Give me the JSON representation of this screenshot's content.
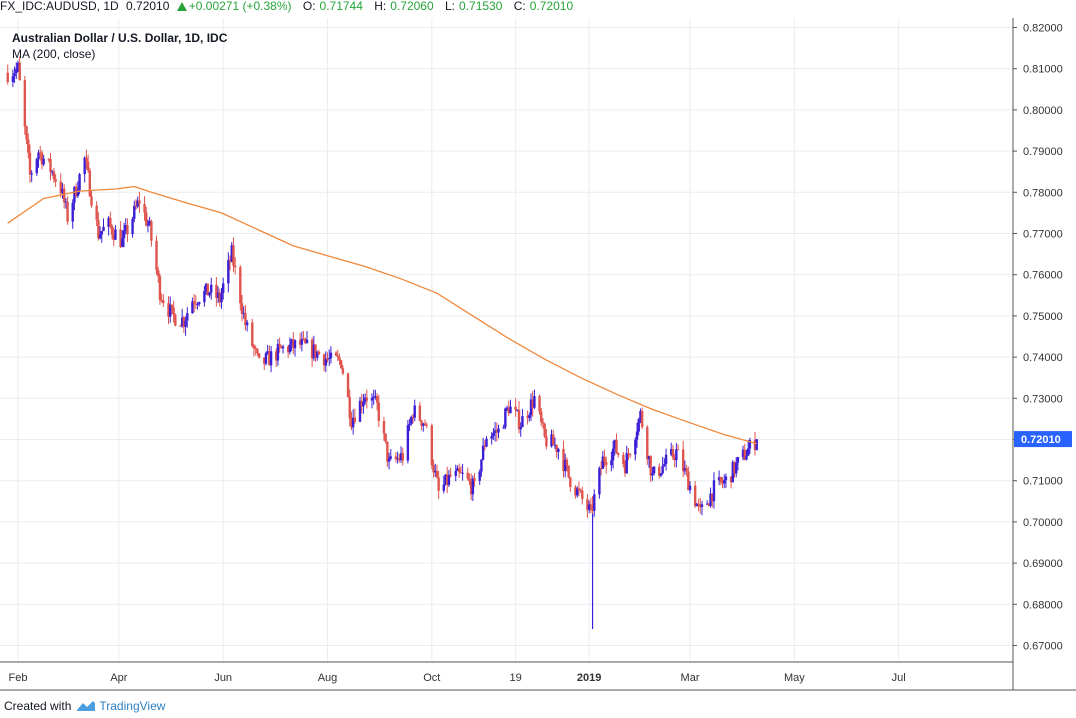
{
  "header": {
    "symbol": "FX_IDC:AUDUSD, 1D",
    "last": "0.72010",
    "change": "+0.00271 (+0.38%)",
    "open_label": "O:",
    "open": "0.71744",
    "high_label": "H:",
    "high": "0.72060",
    "low_label": "L:",
    "low": "0.71530",
    "close_label": "C:",
    "close": "0.72010"
  },
  "legend": {
    "title": "Australian Dollar / U.S. Dollar, 1D, IDC",
    "indicator": "MA (200, close)"
  },
  "price_tag": "0.72010",
  "footer": {
    "created_with": "Created with",
    "brand": "TradingView"
  },
  "colors": {
    "up": "#3a1fd6",
    "down": "#e0544e",
    "ma": "#f0883c",
    "grid": "#e9edf2",
    "tag": "#2862ff"
  },
  "chart_data": {
    "type": "candlestick",
    "title": "Australian Dollar / U.S. Dollar, 1D, IDC",
    "ylim": [
      0.665,
      0.822
    ],
    "y_ticks": [
      "0.82000",
      "0.81000",
      "0.80000",
      "0.79000",
      "0.78000",
      "0.77000",
      "0.76000",
      "0.75000",
      "0.74000",
      "0.73000",
      "0.72000",
      "0.71000",
      "0.70000",
      "0.69000",
      "0.68000",
      "0.67000"
    ],
    "x_ticks": [
      "Feb",
      "Apr",
      "Jun",
      "Aug",
      "Oct",
      "19",
      "2019",
      "Mar",
      "May",
      "Jul"
    ],
    "close_path": [
      [
        "2018-01-26",
        0.809
      ],
      [
        "2018-02-01",
        0.81
      ],
      [
        "2018-02-08",
        0.784
      ],
      [
        "2018-02-13",
        0.79
      ],
      [
        "2018-02-21",
        0.785
      ],
      [
        "2018-02-26",
        0.781
      ],
      [
        "2018-03-02",
        0.774
      ],
      [
        "2018-03-12",
        0.788
      ],
      [
        "2018-03-20",
        0.77
      ],
      [
        "2018-03-26",
        0.772
      ],
      [
        "2018-04-03",
        0.768
      ],
      [
        "2018-04-13",
        0.778
      ],
      [
        "2018-04-19",
        0.771
      ],
      [
        "2018-04-25",
        0.756
      ],
      [
        "2018-05-02",
        0.75
      ],
      [
        "2018-05-09",
        0.749
      ],
      [
        "2018-05-14",
        0.754
      ],
      [
        "2018-05-24",
        0.756
      ],
      [
        "2018-05-30",
        0.754
      ],
      [
        "2018-06-06",
        0.765
      ],
      [
        "2018-06-14",
        0.748
      ],
      [
        "2018-06-22",
        0.738
      ],
      [
        "2018-06-29",
        0.74
      ],
      [
        "2018-07-06",
        0.742
      ],
      [
        "2018-07-16",
        0.743
      ],
      [
        "2018-07-26",
        0.741
      ],
      [
        "2018-08-03",
        0.739
      ],
      [
        "2018-08-09",
        0.739
      ],
      [
        "2018-08-15",
        0.725
      ],
      [
        "2018-08-23",
        0.731
      ],
      [
        "2018-08-30",
        0.728
      ],
      [
        "2018-09-06",
        0.714
      ],
      [
        "2018-09-14",
        0.716
      ],
      [
        "2018-09-20",
        0.727
      ],
      [
        "2018-09-27",
        0.724
      ],
      [
        "2018-10-05",
        0.707
      ],
      [
        "2018-10-12",
        0.711
      ],
      [
        "2018-10-19",
        0.711
      ],
      [
        "2018-10-26",
        0.708
      ],
      [
        "2018-11-02",
        0.721
      ],
      [
        "2018-11-09",
        0.722
      ],
      [
        "2018-11-15",
        0.728
      ],
      [
        "2018-11-22",
        0.724
      ],
      [
        "2018-11-30",
        0.73
      ],
      [
        "2018-12-06",
        0.72
      ],
      [
        "2018-12-14",
        0.718
      ],
      [
        "2018-12-20",
        0.711
      ],
      [
        "2018-12-27",
        0.706
      ],
      [
        "2019-01-02",
        0.702
      ],
      [
        "2019-01-09",
        0.715
      ],
      [
        "2019-01-16",
        0.718
      ],
      [
        "2019-01-22",
        0.714
      ],
      [
        "2019-01-31",
        0.726
      ],
      [
        "2019-02-07",
        0.711
      ],
      [
        "2019-02-14",
        0.714
      ],
      [
        "2019-02-21",
        0.717
      ],
      [
        "2019-02-27",
        0.711
      ],
      [
        "2019-03-07",
        0.702
      ],
      [
        "2019-03-15",
        0.708
      ],
      [
        "2019-03-22",
        0.71
      ],
      [
        "2019-03-27",
        0.713
      ],
      [
        "2019-04-03",
        0.717
      ],
      [
        "2019-04-09",
        0.7201
      ]
    ],
    "low_spike": [
      "2019-01-03",
      0.674
    ],
    "ma200": [
      [
        "2018-01-26",
        0.7725
      ],
      [
        "2018-02-16",
        0.7785
      ],
      [
        "2018-03-09",
        0.7803
      ],
      [
        "2018-03-30",
        0.7808
      ],
      [
        "2018-04-10",
        0.7814
      ],
      [
        "2018-04-20",
        0.78
      ],
      [
        "2018-05-10",
        0.7775
      ],
      [
        "2018-05-31",
        0.775
      ],
      [
        "2018-06-21",
        0.771
      ],
      [
        "2018-07-12",
        0.767
      ],
      [
        "2018-08-02",
        0.7645
      ],
      [
        "2018-08-23",
        0.762
      ],
      [
        "2018-09-13",
        0.759
      ],
      [
        "2018-10-04",
        0.7555
      ],
      [
        "2018-10-25",
        0.75
      ],
      [
        "2018-11-15",
        0.7445
      ],
      [
        "2018-12-06",
        0.7395
      ],
      [
        "2018-12-27",
        0.735
      ],
      [
        "2019-01-17",
        0.731
      ],
      [
        "2019-02-07",
        0.7273
      ],
      [
        "2019-02-28",
        0.7242
      ],
      [
        "2019-03-21",
        0.7212
      ],
      [
        "2019-04-09",
        0.719
      ]
    ]
  }
}
